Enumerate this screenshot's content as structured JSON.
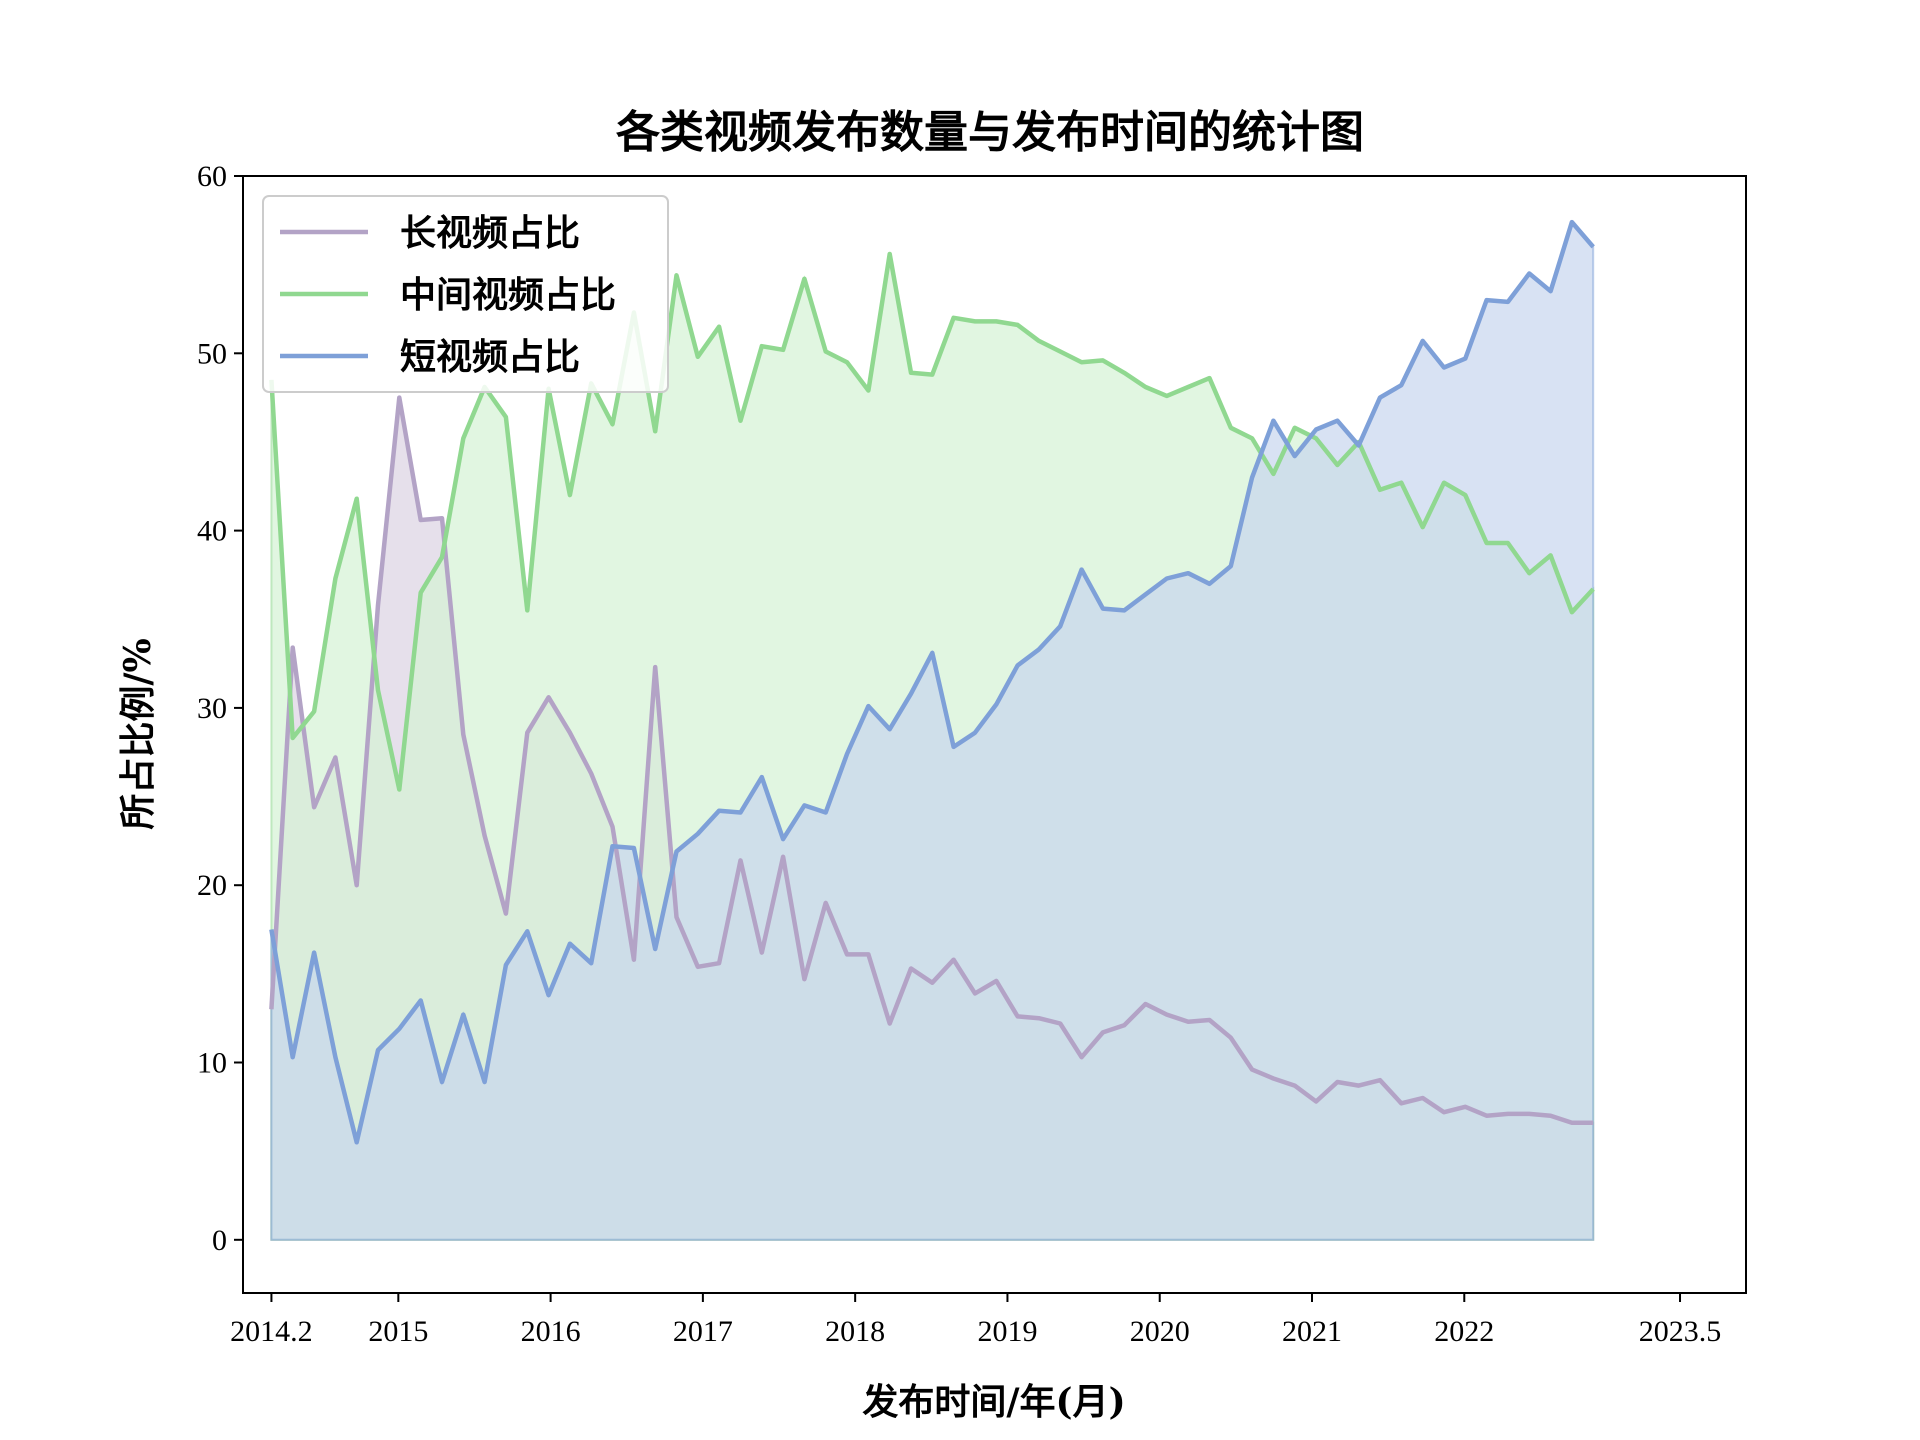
{
  "chart_data": {
    "type": "area",
    "title": "各类视频发布数量与发布时间的统计图",
    "xlabel": "发布时间/年(月)",
    "ylabel": "所占比例/%",
    "xlim": [
      2013.98,
      2023.85
    ],
    "ylim": [
      -3,
      60
    ],
    "x_ticks": [
      2014.1667,
      2015,
      2016,
      2017,
      2018,
      2019,
      2020,
      2021,
      2022,
      2023.4167
    ],
    "x_tick_labels": [
      "2014.2",
      "2015",
      "2016",
      "2017",
      "2018",
      "2019",
      "2020",
      "2021",
      "2022",
      "2023.5"
    ],
    "y_ticks": [
      0,
      10,
      20,
      30,
      40,
      50,
      60
    ],
    "y_tick_labels": [
      "0",
      "10",
      "20",
      "30",
      "40",
      "50",
      "60"
    ],
    "legend_position": "top-left",
    "x_start": 2014.1667,
    "x_step": 0.14,
    "series": [
      {
        "name": "长视频占比",
        "color": "#b3a3c6",
        "fill": "#dcd3e3",
        "values": [
          13.0,
          33.4,
          24.4,
          27.2,
          20.0,
          35.8,
          47.5,
          40.6,
          40.7,
          28.5,
          22.8,
          18.4,
          28.6,
          30.6,
          28.6,
          26.3,
          23.3,
          15.8,
          32.3,
          18.2,
          15.4,
          15.6,
          21.4,
          16.2,
          21.6,
          14.7,
          19.0,
          16.1,
          16.1,
          12.2,
          15.3,
          14.5,
          15.8,
          13.9,
          14.6,
          12.6,
          12.5,
          12.2,
          10.3,
          11.7,
          12.1,
          13.3,
          12.7,
          12.3,
          12.4,
          11.4,
          9.6,
          9.1,
          8.7,
          7.8,
          8.9,
          8.7,
          9.0,
          7.7,
          8.0,
          7.2,
          7.5,
          7.0,
          7.1,
          7.1,
          7.0,
          6.6,
          6.6
        ]
      },
      {
        "name": "中间视频占比",
        "color": "#90d890",
        "fill": "#d4f2d4",
        "values": [
          48.5,
          28.3,
          29.8,
          37.3,
          41.8,
          31.0,
          25.4,
          36.5,
          38.5,
          45.2,
          48.1,
          46.4,
          35.5,
          48.0,
          42.0,
          48.3,
          46.0,
          52.3,
          45.6,
          54.4,
          49.8,
          51.5,
          46.2,
          50.4,
          50.2,
          54.2,
          50.1,
          49.5,
          47.9,
          55.6,
          48.9,
          48.8,
          52.0,
          51.8,
          51.8,
          51.6,
          50.7,
          50.1,
          49.5,
          49.6,
          48.9,
          48.1,
          47.6,
          48.1,
          48.6,
          45.8,
          45.2,
          43.2,
          45.8,
          45.2,
          43.7,
          45.0,
          42.3,
          42.7,
          40.2,
          42.7,
          42.0,
          39.3,
          39.3,
          37.6,
          38.6,
          35.4,
          36.7
        ]
      },
      {
        "name": "短视频占比",
        "color": "#7ea0d8",
        "fill": "#c8d6ee",
        "values": [
          17.5,
          10.3,
          16.2,
          10.3,
          5.5,
          10.7,
          11.9,
          13.5,
          8.9,
          12.7,
          8.9,
          15.5,
          17.4,
          13.8,
          16.7,
          15.6,
          22.2,
          22.1,
          16.4,
          21.9,
          22.9,
          24.2,
          24.1,
          26.1,
          22.6,
          24.5,
          24.1,
          27.4,
          30.1,
          28.8,
          30.8,
          33.1,
          27.8,
          28.6,
          30.2,
          32.4,
          33.3,
          34.6,
          37.8,
          35.6,
          35.5,
          36.4,
          37.3,
          37.6,
          37.0,
          38.0,
          43.0,
          46.2,
          44.2,
          45.7,
          46.2,
          44.8,
          47.5,
          48.2,
          50.7,
          49.2,
          49.7,
          53.0,
          52.9,
          54.5,
          53.5,
          57.4,
          56.0
        ]
      }
    ]
  }
}
